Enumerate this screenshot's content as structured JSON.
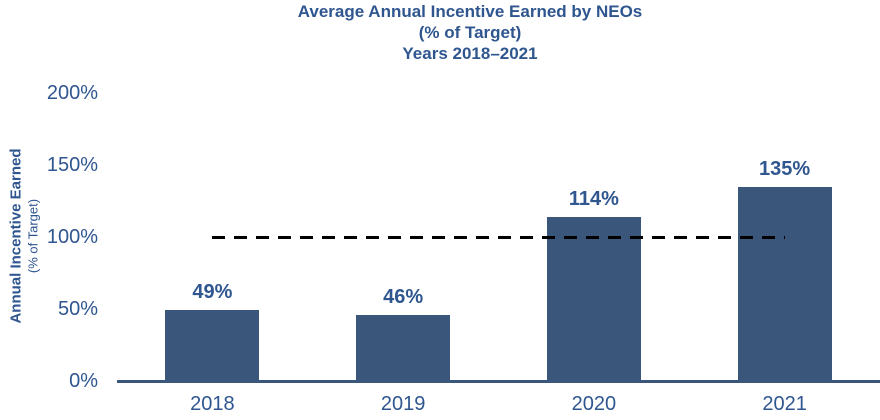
{
  "title": {
    "line1": "Average Annual Incentive Earned by NEOs",
    "line2": "(% of Target)",
    "line3": "Years 2018–2021"
  },
  "y_axis_title": {
    "line1": "Annual Incentive Earned",
    "line2": "(% of Target)"
  },
  "chart_data": {
    "type": "bar",
    "title": "Average Annual Incentive Earned by NEOs (% of Target) Years 2018–2021",
    "categories": [
      "2018",
      "2019",
      "2020",
      "2021"
    ],
    "values": [
      49,
      46,
      114,
      135
    ],
    "data_labels": [
      "49%",
      "46%",
      "114%",
      "135%"
    ],
    "xlabel": "",
    "ylabel": "Annual Incentive Earned (% of Target)",
    "ylim": [
      0,
      200
    ],
    "y_ticks": [
      0,
      50,
      100,
      150,
      200
    ],
    "y_tick_labels": [
      "0%",
      "50%",
      "100%",
      "150%",
      "200%"
    ],
    "reference_line": {
      "value": 100,
      "style": "dashed",
      "color": "#000000"
    },
    "grid": false,
    "legend": "none"
  },
  "colors": {
    "bar": "#3A567B",
    "text": "#2F568F",
    "axis": "#3A567B",
    "reference": "#000000",
    "background": "#FFFFFF"
  }
}
